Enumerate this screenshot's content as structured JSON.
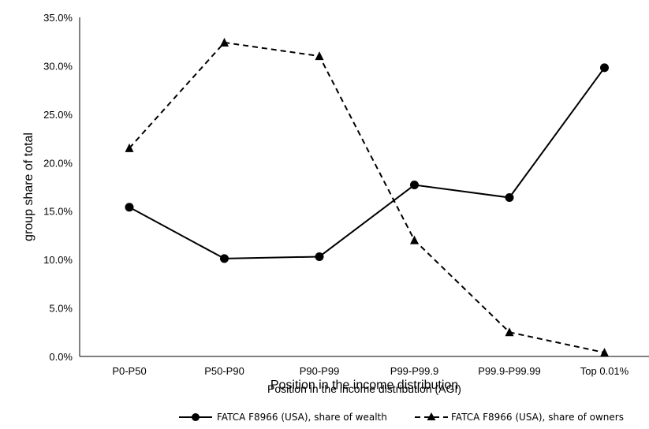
{
  "chart_data": {
    "type": "line",
    "categories": [
      "P0-P50",
      "P50-P90",
      "P90-P99",
      "P99-P99.9",
      "P99.9-P99.99",
      "Top 0.01%"
    ],
    "series": [
      {
        "name": "FATCA F8966 (USA), share of wealth",
        "values": [
          15.4,
          10.1,
          10.3,
          17.7,
          16.4,
          29.8
        ],
        "marker": "circle",
        "dash": "solid",
        "color": "#000000"
      },
      {
        "name": "FATCA F8966 (USA), share of owners",
        "values": [
          21.5,
          32.4,
          31.0,
          12.0,
          2.5,
          0.4
        ],
        "marker": "triangle",
        "dash": "dashed",
        "color": "#000000"
      }
    ],
    "ylim": [
      0,
      35
    ],
    "yticks": [
      "0.0%",
      "5.0%",
      "10.0%",
      "15.0%",
      "20.0%",
      "25.0%",
      "30.0%",
      "35.0%"
    ],
    "ylabel": "group share of total",
    "xlabel": "Position in the income distribution",
    "xlabel_overlap": "Position in the income distribution (AGI)",
    "legend_position": "bottom",
    "grid": false
  }
}
